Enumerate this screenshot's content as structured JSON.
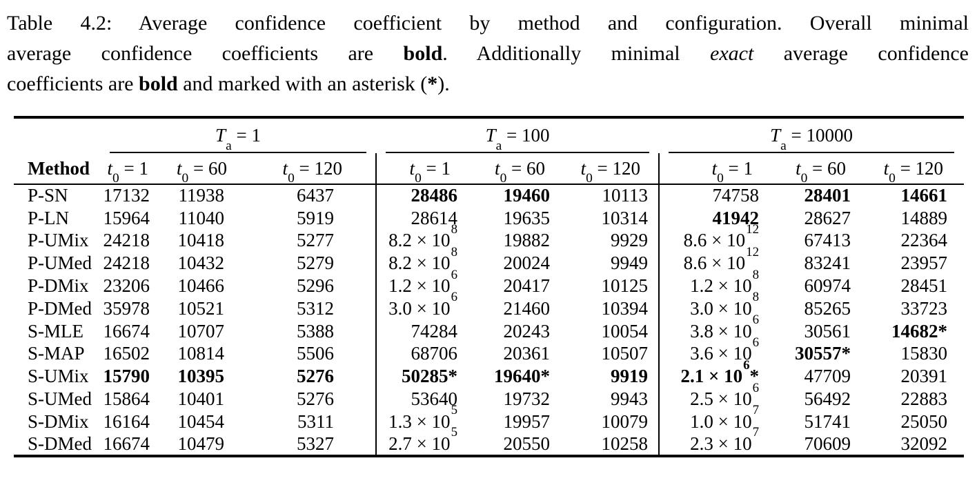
{
  "caption": {
    "lines": [
      {
        "justify": true,
        "segments": [
          {
            "t": "Table 4.2: Average confidence coefficient by method and configuration. Overall minimal"
          }
        ]
      },
      {
        "justify": true,
        "segments": [
          {
            "t": "average confidence coefficients are "
          },
          {
            "t": "bold",
            "b": true
          },
          {
            "t": ". Additionally minimal "
          },
          {
            "t": "exact",
            "i": true
          },
          {
            "t": " average confidence"
          }
        ]
      },
      {
        "justify": false,
        "segments": [
          {
            "t": "coefficients are "
          },
          {
            "t": "bold",
            "b": true
          },
          {
            "t": " and marked with an asterisk ("
          },
          {
            "t": "*",
            "b": true
          },
          {
            "t": ")."
          }
        ]
      }
    ]
  },
  "table": {
    "method_header": "Method",
    "sci_prefix": " × 10",
    "star": "*",
    "groups": [
      {
        "var": "T",
        "sub": "a",
        "rest": " = 1"
      },
      {
        "var": "T",
        "sub": "a",
        "rest": " = 100"
      },
      {
        "var": "T",
        "sub": "a",
        "rest": " = 10000"
      }
    ],
    "subcols": [
      {
        "var": "t",
        "sub": "0",
        "rest": " = 1"
      },
      {
        "var": "t",
        "sub": "0",
        "rest": " = 60"
      },
      {
        "var": "t",
        "sub": "0",
        "rest": " = 120"
      }
    ],
    "rows": [
      {
        "method": "P-SN",
        "cells": [
          {
            "v": "17132"
          },
          {
            "v": "11938"
          },
          {
            "v": "6437"
          },
          {
            "v": "28486",
            "b": true
          },
          {
            "v": "19460",
            "b": true
          },
          {
            "v": "10113"
          },
          {
            "v": "74758"
          },
          {
            "v": "28401",
            "b": true
          },
          {
            "v": "14661",
            "b": true
          }
        ]
      },
      {
        "method": "P-LN",
        "cells": [
          {
            "v": "15964"
          },
          {
            "v": "11040"
          },
          {
            "v": "5919"
          },
          {
            "v": "28614"
          },
          {
            "v": "19635"
          },
          {
            "v": "10314"
          },
          {
            "v": "41942",
            "b": true
          },
          {
            "v": "28627"
          },
          {
            "v": "14889"
          }
        ]
      },
      {
        "method": "P-UMix",
        "cells": [
          {
            "v": "24218"
          },
          {
            "v": "10418"
          },
          {
            "v": "5277"
          },
          {
            "m": "8.2",
            "e": "8"
          },
          {
            "v": "19882"
          },
          {
            "v": "9929"
          },
          {
            "m": "8.6",
            "e": "12"
          },
          {
            "v": "67413"
          },
          {
            "v": "22364"
          }
        ]
      },
      {
        "method": "P-UMed",
        "cells": [
          {
            "v": "24218"
          },
          {
            "v": "10432"
          },
          {
            "v": "5279"
          },
          {
            "m": "8.2",
            "e": "8"
          },
          {
            "v": "20024"
          },
          {
            "v": "9949"
          },
          {
            "m": "8.6",
            "e": "12"
          },
          {
            "v": "83241"
          },
          {
            "v": "23957"
          }
        ]
      },
      {
        "method": "P-DMix",
        "cells": [
          {
            "v": "23206"
          },
          {
            "v": "10466"
          },
          {
            "v": "5296"
          },
          {
            "m": "1.2",
            "e": "6"
          },
          {
            "v": "20417"
          },
          {
            "v": "10125"
          },
          {
            "m": "1.2",
            "e": "8"
          },
          {
            "v": "60974"
          },
          {
            "v": "28451"
          }
        ]
      },
      {
        "method": "P-DMed",
        "cells": [
          {
            "v": "35978"
          },
          {
            "v": "10521"
          },
          {
            "v": "5312"
          },
          {
            "m": "3.0",
            "e": "6"
          },
          {
            "v": "21460"
          },
          {
            "v": "10394"
          },
          {
            "m": "3.0",
            "e": "8"
          },
          {
            "v": "85265"
          },
          {
            "v": "33723"
          }
        ]
      },
      {
        "method": "S-MLE",
        "cells": [
          {
            "v": "16674"
          },
          {
            "v": "10707"
          },
          {
            "v": "5388"
          },
          {
            "v": "74284"
          },
          {
            "v": "20243"
          },
          {
            "v": "10054"
          },
          {
            "m": "3.8",
            "e": "6"
          },
          {
            "v": "30561"
          },
          {
            "v": "14682",
            "b": true,
            "s": true
          }
        ]
      },
      {
        "method": "S-MAP",
        "cells": [
          {
            "v": "16502"
          },
          {
            "v": "10814"
          },
          {
            "v": "5506"
          },
          {
            "v": "68706"
          },
          {
            "v": "20361"
          },
          {
            "v": "10507"
          },
          {
            "m": "3.6",
            "e": "6"
          },
          {
            "v": "30557",
            "b": true,
            "s": true
          },
          {
            "v": "15830"
          }
        ]
      },
      {
        "method": "S-UMix",
        "cells": [
          {
            "v": "15790",
            "b": true
          },
          {
            "v": "10395",
            "b": true
          },
          {
            "v": "5276",
            "b": true
          },
          {
            "v": "50285",
            "b": true,
            "s": true
          },
          {
            "v": "19640",
            "b": true,
            "s": true
          },
          {
            "v": "9919",
            "b": true
          },
          {
            "m": "2.1",
            "e": "6",
            "b": true,
            "s": true
          },
          {
            "v": "47709"
          },
          {
            "v": "20391"
          }
        ]
      },
      {
        "method": "S-UMed",
        "cells": [
          {
            "v": "15864"
          },
          {
            "v": "10401"
          },
          {
            "v": "5276"
          },
          {
            "v": "53640"
          },
          {
            "v": "19732"
          },
          {
            "v": "9943"
          },
          {
            "m": "2.5",
            "e": "6"
          },
          {
            "v": "56492"
          },
          {
            "v": "22883"
          }
        ]
      },
      {
        "method": "S-DMix",
        "cells": [
          {
            "v": "16164"
          },
          {
            "v": "10454"
          },
          {
            "v": "5311"
          },
          {
            "m": "1.3",
            "e": "5"
          },
          {
            "v": "19957"
          },
          {
            "v": "10079"
          },
          {
            "m": "1.0",
            "e": "7"
          },
          {
            "v": "51741"
          },
          {
            "v": "25050"
          }
        ]
      },
      {
        "method": "S-DMed",
        "cells": [
          {
            "v": "16674"
          },
          {
            "v": "10479"
          },
          {
            "v": "5327"
          },
          {
            "m": "2.7",
            "e": "5"
          },
          {
            "v": "20550"
          },
          {
            "v": "10258"
          },
          {
            "m": "2.3",
            "e": "7"
          },
          {
            "v": "70609"
          },
          {
            "v": "32092"
          }
        ]
      }
    ]
  }
}
